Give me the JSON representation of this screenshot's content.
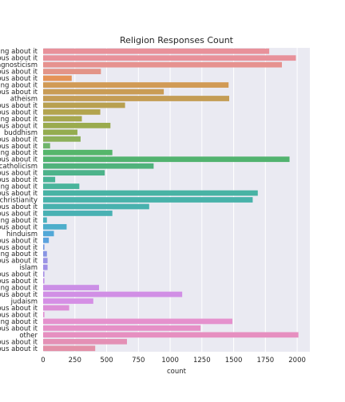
{
  "chart_data": {
    "type": "bar",
    "orientation": "horizontal",
    "title": "Religion Responses Count",
    "xlabel": "count",
    "ylabel": "",
    "xlim": [
      0,
      2100
    ],
    "xticks": [
      0,
      250,
      500,
      750,
      1000,
      1250,
      1500,
      1750,
      2000
    ],
    "grid": true,
    "categories": [
      "agnosticism and laughing about it",
      "agnosticism but not too serious about it",
      "agnosticism",
      "agnosticism and somewhat serious about it",
      "agnosticism and very serious about it",
      "atheism and laughing about it",
      "atheism but not too serious about it",
      "atheism",
      "atheism and somewhat serious about it",
      "atheism and very serious about it",
      "buddhism and laughing about it",
      "buddhism but not too serious about it",
      "buddhism",
      "buddhism and somewhat serious about it",
      "buddhism and very serious about it",
      "catholicism and laughing about it",
      "catholicism but not too serious about it",
      "catholicism",
      "catholicism and somewhat serious about it",
      "catholicism and very serious about it",
      "christianity and laughing about it",
      "christianity but not too serious about it",
      "christianity",
      "christianity and somewhat serious about it",
      "christianity and very serious about it",
      "hinduism and laughing about it",
      "hinduism but not too serious about it",
      "hinduism",
      "hinduism and somewhat serious about it",
      "hinduism and very serious about it",
      "islam and laughing about it",
      "islam but not too serious about it",
      "islam",
      "islam and somewhat serious about it",
      "islam and very serious about it",
      "judaism and laughing about it",
      "judaism but not too serious about it",
      "judaism",
      "judaism and somewhat serious about it",
      "judaism and very serious about it",
      "other and laughing about it",
      "other but not too serious about it",
      "other",
      "other and somewhat serious about it",
      "other and very serious about it"
    ],
    "values": [
      1780,
      1990,
      1880,
      455,
      225,
      1460,
      950,
      1465,
      645,
      450,
      305,
      530,
      270,
      295,
      55,
      545,
      1940,
      870,
      485,
      95,
      285,
      1690,
      1650,
      835,
      545,
      30,
      185,
      85,
      45,
      10,
      30,
      35,
      35,
      10,
      10,
      440,
      1095,
      395,
      205,
      10,
      1490,
      1240,
      2010,
      660,
      410
    ],
    "colors": [
      "#e8919a",
      "#e8919a",
      "#e6928f",
      "#e39487",
      "#e59357",
      "#d19a55",
      "#c99c55",
      "#c49d55",
      "#b8a050",
      "#b3a44e",
      "#a6a74e",
      "#9aab4e",
      "#94ac4f",
      "#8db05a",
      "#6fb56a",
      "#55b66b",
      "#52b36f",
      "#4fb27b",
      "#4db38a",
      "#4ab396",
      "#49b49b",
      "#48b3a4",
      "#48b2aa",
      "#48b1ae",
      "#49b1b3",
      "#4bb1bc",
      "#4daecb",
      "#52a8d7",
      "#5aa2de",
      "#7698e2",
      "#8895e3",
      "#9b93e4",
      "#a090e6",
      "#a78fe6",
      "#c28ee6",
      "#cb8fe6",
      "#d18fe5",
      "#d58fe5",
      "#dc8fd7",
      "#e08fd3",
      "#e591cd",
      "#e690c7",
      "#e68fc0",
      "#e490b5",
      "#e391a8"
    ]
  }
}
